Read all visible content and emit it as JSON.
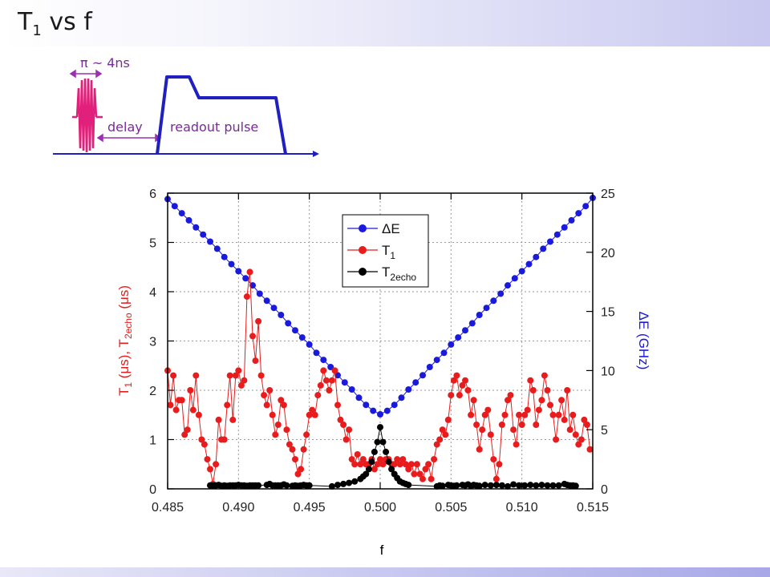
{
  "slide": {
    "title_main": "T",
    "title_sub": "1",
    "title_rest": " vs f"
  },
  "pulse_diagram": {
    "pi_label": "π ~ 4ns",
    "delay_label": "delay",
    "readout_label": "readout pulse",
    "colors": {
      "pi_pulse": "#e0207a",
      "readout": "#2020c0",
      "annotation": "#9a30b0"
    }
  },
  "chart_data": {
    "type": "scatter",
    "xlabel": "f",
    "ylabel_left_parts": [
      "T",
      "1",
      " (μs), T",
      "2echo",
      " (μs)"
    ],
    "ylabel_right": "ΔE (GHz)",
    "xlim": [
      0.485,
      0.515
    ],
    "ylim_left": [
      0,
      6
    ],
    "ylim_right": [
      0,
      25
    ],
    "x_ticks": [
      "0.485",
      "0.490",
      "0.495",
      "0.500",
      "0.505",
      "0.510",
      "0.515"
    ],
    "y_ticks_left": [
      "0",
      "1",
      "2",
      "3",
      "4",
      "5",
      "6"
    ],
    "y_ticks_right": [
      "0",
      "5",
      "10",
      "15",
      "20",
      "25"
    ],
    "grid": true,
    "legend_position": "top-center",
    "legend": [
      {
        "label_main": "ΔE",
        "label_sub": "",
        "color": "#1a1adc"
      },
      {
        "label_main": "T",
        "label_sub": "1",
        "color": "#e81c1c"
      },
      {
        "label_main": "T",
        "label_sub": "2echo",
        "color": "#000000"
      }
    ],
    "series": [
      {
        "name": "ΔE",
        "axis": "right",
        "color": "#1a1adc",
        "x": [
          0.485,
          0.4855,
          0.486,
          0.4865,
          0.487,
          0.4875,
          0.488,
          0.4885,
          0.489,
          0.4895,
          0.49,
          0.4905,
          0.491,
          0.4915,
          0.492,
          0.4925,
          0.493,
          0.4935,
          0.494,
          0.4945,
          0.495,
          0.4955,
          0.496,
          0.4965,
          0.497,
          0.4975,
          0.498,
          0.4985,
          0.499,
          0.4995,
          0.5,
          0.5005,
          0.501,
          0.5015,
          0.502,
          0.5025,
          0.503,
          0.5035,
          0.504,
          0.5045,
          0.505,
          0.5055,
          0.506,
          0.5065,
          0.507,
          0.5075,
          0.508,
          0.5085,
          0.509,
          0.5095,
          0.51,
          0.5105,
          0.511,
          0.5115,
          0.512,
          0.5125,
          0.513,
          0.5135,
          0.514,
          0.5145,
          0.515
        ],
        "y": [
          24.5,
          23.9,
          23.3,
          22.7,
          22.1,
          21.5,
          20.9,
          20.3,
          19.6,
          19.0,
          18.4,
          17.8,
          17.2,
          16.5,
          15.9,
          15.3,
          14.7,
          14.0,
          13.4,
          12.8,
          12.2,
          11.5,
          10.9,
          10.3,
          9.6,
          9.0,
          8.4,
          7.7,
          7.1,
          6.6,
          6.3,
          6.6,
          7.1,
          7.7,
          8.4,
          9.0,
          9.6,
          10.3,
          10.9,
          11.5,
          12.2,
          12.8,
          13.4,
          14.0,
          14.7,
          15.3,
          15.9,
          16.5,
          17.2,
          17.8,
          18.4,
          19.0,
          19.6,
          20.3,
          20.9,
          21.5,
          22.1,
          22.7,
          23.3,
          23.9,
          24.6
        ]
      },
      {
        "name": "T1",
        "axis": "left",
        "color": "#e81c1c",
        "x": [
          0.485,
          0.4852,
          0.4854,
          0.4856,
          0.4858,
          0.486,
          0.4862,
          0.4864,
          0.4866,
          0.4868,
          0.487,
          0.4872,
          0.4874,
          0.4876,
          0.4878,
          0.488,
          0.4882,
          0.4884,
          0.4886,
          0.4888,
          0.489,
          0.4892,
          0.4894,
          0.4896,
          0.4898,
          0.49,
          0.4902,
          0.4904,
          0.4906,
          0.4908,
          0.491,
          0.4912,
          0.4914,
          0.4916,
          0.4918,
          0.492,
          0.4922,
          0.4924,
          0.4926,
          0.4928,
          0.493,
          0.4932,
          0.4934,
          0.4936,
          0.4938,
          0.494,
          0.4942,
          0.4944,
          0.4946,
          0.4948,
          0.495,
          0.4952,
          0.4954,
          0.4956,
          0.4958,
          0.496,
          0.4962,
          0.4964,
          0.4966,
          0.4968,
          0.497,
          0.4972,
          0.4974,
          0.4976,
          0.4978,
          0.498,
          0.4982,
          0.4984,
          0.4986,
          0.4988,
          0.499,
          0.4992,
          0.4994,
          0.4996,
          0.4998,
          0.5,
          0.5002,
          0.5004,
          0.5006,
          0.5008,
          0.501,
          0.5012,
          0.5014,
          0.5016,
          0.5018,
          0.502,
          0.5022,
          0.5024,
          0.5026,
          0.5028,
          0.503,
          0.5032,
          0.5034,
          0.5036,
          0.5038,
          0.504,
          0.5042,
          0.5044,
          0.5046,
          0.5048,
          0.505,
          0.5052,
          0.5054,
          0.5056,
          0.5058,
          0.506,
          0.5062,
          0.5064,
          0.5066,
          0.5068,
          0.507,
          0.5072,
          0.5074,
          0.5076,
          0.5078,
          0.508,
          0.5082,
          0.5084,
          0.5086,
          0.5088,
          0.509,
          0.5092,
          0.5094,
          0.5096,
          0.5098,
          0.51,
          0.5102,
          0.5104,
          0.5106,
          0.5108,
          0.511,
          0.5112,
          0.5114,
          0.5116,
          0.5118,
          0.512,
          0.5122,
          0.5124,
          0.5126,
          0.5128,
          0.513,
          0.5132,
          0.5134,
          0.5136,
          0.5138,
          0.514,
          0.5142,
          0.5144,
          0.5146,
          0.5148
        ],
        "y": [
          2.4,
          1.7,
          2.3,
          1.6,
          1.8,
          1.8,
          1.1,
          1.2,
          2.0,
          1.6,
          2.3,
          1.5,
          1.0,
          0.9,
          0.6,
          0.4,
          0.1,
          0.5,
          1.4,
          1.0,
          1.0,
          1.7,
          2.3,
          1.4,
          2.3,
          2.4,
          2.1,
          2.2,
          3.9,
          4.4,
          3.1,
          2.6,
          3.4,
          2.3,
          1.9,
          1.7,
          2.0,
          1.5,
          1.1,
          1.3,
          1.8,
          1.7,
          1.2,
          0.9,
          0.8,
          0.6,
          0.3,
          0.4,
          0.8,
          1.1,
          1.5,
          1.6,
          1.5,
          1.9,
          2.1,
          2.4,
          2.2,
          2.0,
          2.2,
          2.4,
          1.7,
          1.4,
          1.3,
          1.0,
          1.2,
          0.6,
          0.5,
          0.7,
          0.5,
          0.6,
          0.5,
          0.5,
          0.6,
          0.4,
          0.5,
          0.6,
          0.5,
          0.6,
          0.6,
          0.5,
          0.5,
          0.6,
          0.5,
          0.6,
          0.5,
          0.4,
          0.5,
          0.3,
          0.5,
          0.3,
          0.2,
          0.4,
          0.5,
          0.2,
          0.6,
          0.9,
          1.0,
          1.2,
          1.1,
          1.4,
          1.9,
          2.2,
          2.3,
          1.9,
          2.1,
          2.2,
          2.0,
          1.5,
          1.8,
          1.3,
          0.8,
          1.2,
          1.5,
          1.6,
          1.1,
          0.6,
          0.2,
          0.5,
          1.3,
          1.5,
          1.8,
          1.9,
          1.2,
          0.9,
          1.5,
          1.3,
          1.5,
          1.6,
          2.2,
          2.0,
          1.3,
          1.6,
          1.8,
          2.3,
          2.0,
          1.7,
          1.5,
          1.0,
          1.5,
          1.8,
          1.4,
          2.0,
          1.2,
          1.5,
          1.1,
          0.9,
          1.0,
          1.4,
          1.3,
          0.8
        ]
      },
      {
        "name": "T2echo",
        "axis": "left",
        "color": "#000000",
        "x": [
          0.488,
          0.4882,
          0.4884,
          0.4886,
          0.4888,
          0.489,
          0.4892,
          0.4894,
          0.4896,
          0.4898,
          0.49,
          0.4902,
          0.4904,
          0.4906,
          0.4908,
          0.491,
          0.4912,
          0.4914,
          0.492,
          0.4922,
          0.4924,
          0.4926,
          0.4928,
          0.493,
          0.4932,
          0.4934,
          0.4938,
          0.494,
          0.4942,
          0.4944,
          0.4946,
          0.4948,
          0.495,
          0.4966,
          0.497,
          0.4974,
          0.4978,
          0.4982,
          0.4986,
          0.4988,
          0.499,
          0.4992,
          0.4994,
          0.4996,
          0.4998,
          0.5,
          0.5002,
          0.5004,
          0.5006,
          0.5008,
          0.501,
          0.5012,
          0.5014,
          0.5016,
          0.5018,
          0.502,
          0.504,
          0.5042,
          0.5044,
          0.5048,
          0.505,
          0.5052,
          0.5054,
          0.5058,
          0.506,
          0.5062,
          0.5064,
          0.5066,
          0.5068,
          0.507,
          0.5074,
          0.5078,
          0.5082,
          0.5086,
          0.509,
          0.5094,
          0.5098,
          0.5102,
          0.5106,
          0.511,
          0.5114,
          0.5118,
          0.5122,
          0.5126,
          0.513,
          0.5132,
          0.5134,
          0.5136,
          0.5138
        ],
        "y": [
          0.07,
          0.07,
          0.07,
          0.08,
          0.06,
          0.07,
          0.06,
          0.07,
          0.07,
          0.07,
          0.08,
          0.07,
          0.07,
          0.06,
          0.07,
          0.07,
          0.07,
          0.07,
          0.08,
          0.1,
          0.07,
          0.07,
          0.07,
          0.07,
          0.09,
          0.07,
          0.06,
          0.07,
          0.06,
          0.07,
          0.08,
          0.07,
          0.07,
          0.05,
          0.08,
          0.1,
          0.12,
          0.15,
          0.2,
          0.25,
          0.3,
          0.4,
          0.55,
          0.75,
          0.95,
          1.25,
          0.95,
          0.75,
          0.55,
          0.4,
          0.3,
          0.22,
          0.15,
          0.12,
          0.1,
          0.08,
          0.05,
          0.07,
          0.06,
          0.08,
          0.07,
          0.06,
          0.07,
          0.08,
          0.07,
          0.09,
          0.06,
          0.08,
          0.07,
          0.06,
          0.08,
          0.07,
          0.08,
          0.07,
          0.05,
          0.09,
          0.07,
          0.07,
          0.08,
          0.07,
          0.08,
          0.07,
          0.07,
          0.07,
          0.1,
          0.08,
          0.07,
          0.07,
          0.06
        ]
      }
    ]
  }
}
